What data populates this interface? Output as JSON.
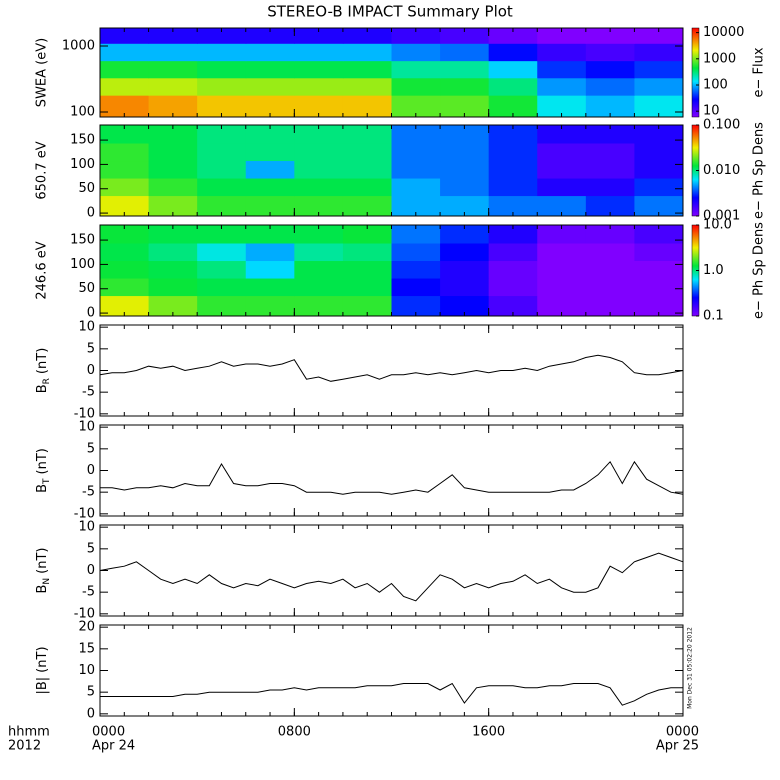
{
  "title": "STEREO-B IMPACT Summary Plot",
  "timestamp": "Mon Dec 31 05:02:20 2012",
  "chart_data": [
    {
      "type": "heatmap",
      "ylabel": "SWEA (eV)",
      "yscale": "log",
      "ylim": [
        84,
        1875
      ],
      "yticks": [
        100,
        1000
      ],
      "xlim": [
        0,
        24
      ],
      "xbins": [
        0,
        2,
        4,
        6,
        8,
        10,
        12,
        14,
        16,
        18,
        20,
        22,
        24
      ],
      "ybins": [
        84,
        180,
        330,
        600,
        1100,
        1875
      ],
      "values": [
        [
          5000,
          4000,
          3000,
          3000,
          3000,
          3000,
          800,
          800,
          500,
          150,
          100,
          150
        ],
        [
          1500,
          1500,
          1200,
          1200,
          1200,
          1200,
          500,
          500,
          300,
          80,
          60,
          80
        ],
        [
          500,
          500,
          400,
          400,
          400,
          400,
          250,
          250,
          120,
          40,
          30,
          40
        ],
        [
          100,
          100,
          100,
          100,
          100,
          100,
          70,
          60,
          30,
          15,
          12,
          15
        ],
        [
          20,
          20,
          20,
          20,
          20,
          20,
          15,
          12,
          8,
          6,
          6,
          6
        ]
      ],
      "zlabel": "e− Flux",
      "zscale": "log",
      "zlim": [
        6,
        15000
      ],
      "zticks": [
        10,
        100,
        1000,
        10000
      ]
    },
    {
      "type": "heatmap",
      "ylabel": "650.7 eV",
      "yscale": "linear",
      "ylim": [
        -6,
        181
      ],
      "yticks": [
        0,
        50,
        100,
        150
      ],
      "xlim": [
        0,
        24
      ],
      "xbins": [
        0,
        2,
        4,
        6,
        8,
        10,
        12,
        14,
        16,
        18,
        20,
        22,
        24
      ],
      "ybins": [
        -6,
        36,
        72,
        108,
        144,
        181
      ],
      "values": [
        [
          0.03,
          0.02,
          0.015,
          0.015,
          0.015,
          0.015,
          0.005,
          0.005,
          0.004,
          0.004,
          0.003,
          0.004
        ],
        [
          0.02,
          0.015,
          0.012,
          0.012,
          0.012,
          0.012,
          0.005,
          0.004,
          0.003,
          0.002,
          0.002,
          0.003
        ],
        [
          0.015,
          0.012,
          0.01,
          0.005,
          0.01,
          0.01,
          0.004,
          0.004,
          0.003,
          0.0015,
          0.0015,
          0.002
        ],
        [
          0.015,
          0.012,
          0.01,
          0.01,
          0.01,
          0.01,
          0.004,
          0.004,
          0.003,
          0.0015,
          0.0015,
          0.002
        ],
        [
          0.012,
          0.012,
          0.01,
          0.01,
          0.01,
          0.01,
          0.004,
          0.004,
          0.003,
          0.002,
          0.002,
          0.002
        ]
      ],
      "zlabel": "e− Ph Sp Dens",
      "zscale": "log",
      "zlim": [
        0.001,
        0.1
      ],
      "zticks": [
        0.001,
        {
          "value": 0.01,
          "label": "0.010"
        },
        {
          "value": 0.1,
          "label": "0.100"
        }
      ]
    },
    {
      "type": "heatmap",
      "ylabel": "246.6 eV",
      "yscale": "linear",
      "ylim": [
        -6,
        181
      ],
      "yticks": [
        0,
        50,
        100,
        150
      ],
      "xlim": [
        0,
        24
      ],
      "xbins": [
        0,
        2,
        4,
        6,
        8,
        10,
        12,
        14,
        16,
        18,
        20,
        22,
        24
      ],
      "ybins": [
        -6,
        36,
        72,
        108,
        144,
        181
      ],
      "values": [
        [
          3,
          2,
          1.5,
          1.5,
          1.5,
          1.5,
          0.3,
          0.25,
          0.15,
          0.1,
          0.1,
          0.1
        ],
        [
          1.5,
          1.3,
          1.2,
          1.2,
          1.2,
          1.2,
          0.25,
          0.2,
          0.12,
          0.1,
          0.1,
          0.1
        ],
        [
          1.3,
          1.2,
          1,
          0.6,
          1.2,
          1.2,
          0.3,
          0.2,
          0.12,
          0.1,
          0.1,
          0.1
        ],
        [
          1.2,
          1,
          0.7,
          0.5,
          0.9,
          1,
          0.35,
          0.25,
          0.15,
          0.1,
          0.1,
          0.12
        ],
        [
          1.3,
          1.2,
          1.2,
          1.2,
          1.2,
          1.3,
          0.4,
          0.3,
          0.2,
          0.12,
          0.12,
          0.15
        ]
      ],
      "zlabel": "e− Ph Sp Dens",
      "zscale": "log",
      "zlim": [
        0.1,
        10
      ],
      "zticks": [
        0.1,
        {
          "value": 1,
          "label": "1.0"
        },
        {
          "value": 10,
          "label": "10.0"
        }
      ]
    },
    {
      "type": "line",
      "ylabel": [
        "B",
        "R",
        "(nT)"
      ],
      "ylim": [
        -10.5,
        10.5
      ],
      "yticks": [
        -10,
        -5,
        0,
        5,
        10
      ],
      "xlim": [
        0,
        24
      ],
      "color": "#000000",
      "x": [
        0,
        0.5,
        1,
        1.5,
        2,
        2.5,
        3,
        3.5,
        4,
        4.5,
        5,
        5.5,
        6,
        6.5,
        7,
        7.5,
        8,
        8.5,
        9,
        9.5,
        10,
        10.5,
        11,
        11.5,
        12,
        12.5,
        13,
        13.5,
        14,
        14.5,
        15,
        15.5,
        16,
        16.5,
        17,
        17.5,
        18,
        18.5,
        19,
        19.5,
        20,
        20.5,
        21,
        21.5,
        22,
        22.5,
        23,
        23.5,
        24
      ],
      "values": [
        -1,
        -0.5,
        -0.5,
        0,
        1,
        0.5,
        1,
        0,
        0.5,
        1,
        2,
        1,
        1.5,
        1.5,
        1,
        1.5,
        2.5,
        -2,
        -1.5,
        -2.5,
        -2,
        -1.5,
        -1,
        -2,
        -1,
        -1,
        -0.5,
        -1,
        -0.5,
        -1,
        -0.5,
        0,
        -0.5,
        0,
        0,
        0.5,
        0,
        1,
        1.5,
        2,
        3,
        3.5,
        3,
        2,
        -0.5,
        -1,
        -1,
        -0.5,
        0
      ]
    },
    {
      "type": "line",
      "ylabel": [
        "B",
        "T",
        "(nT)"
      ],
      "ylim": [
        -10.5,
        10.5
      ],
      "yticks": [
        -10,
        -5,
        0,
        5,
        10
      ],
      "xlim": [
        0,
        24
      ],
      "color": "#000000",
      "x": [
        0,
        0.5,
        1,
        1.5,
        2,
        2.5,
        3,
        3.5,
        4,
        4.5,
        5,
        5.5,
        6,
        6.5,
        7,
        7.5,
        8,
        8.5,
        9,
        9.5,
        10,
        10.5,
        11,
        11.5,
        12,
        12.5,
        13,
        13.5,
        14,
        14.5,
        15,
        15.5,
        16,
        16.5,
        17,
        17.5,
        18,
        18.5,
        19,
        19.5,
        20,
        20.5,
        21,
        21.5,
        22,
        22.5,
        23,
        23.5,
        24
      ],
      "values": [
        -4,
        -4,
        -4.5,
        -4,
        -4,
        -3.5,
        -4,
        -3,
        -3.5,
        -3.5,
        1.5,
        -3,
        -3.5,
        -3.5,
        -3,
        -3,
        -3.5,
        -5,
        -5,
        -5,
        -5.5,
        -5,
        -5,
        -5,
        -5.5,
        -5,
        -4.5,
        -5,
        -3,
        -1,
        -4,
        -4.5,
        -5,
        -5,
        -5,
        -5,
        -5,
        -5,
        -4.5,
        -4.5,
        -3,
        -1,
        2,
        -3,
        2,
        -2,
        -3.5,
        -5,
        -5.5
      ]
    },
    {
      "type": "line",
      "ylabel": [
        "B",
        "N",
        "(nT)"
      ],
      "ylim": [
        -10.5,
        10.5
      ],
      "yticks": [
        -10,
        -5,
        0,
        5,
        10
      ],
      "xlim": [
        0,
        24
      ],
      "color": "#000000",
      "x": [
        0,
        0.5,
        1,
        1.5,
        2,
        2.5,
        3,
        3.5,
        4,
        4.5,
        5,
        5.5,
        6,
        6.5,
        7,
        7.5,
        8,
        8.5,
        9,
        9.5,
        10,
        10.5,
        11,
        11.5,
        12,
        12.5,
        13,
        13.5,
        14,
        14.5,
        15,
        15.5,
        16,
        16.5,
        17,
        17.5,
        18,
        18.5,
        19,
        19.5,
        20,
        20.5,
        21,
        21.5,
        22,
        22.5,
        23,
        23.5,
        24
      ],
      "values": [
        0,
        0.5,
        1,
        2,
        0,
        -2,
        -3,
        -2,
        -3,
        -1,
        -3,
        -4,
        -3,
        -3.5,
        -2,
        -3,
        -4,
        -3,
        -2.5,
        -3,
        -2,
        -4,
        -3,
        -5,
        -3,
        -6,
        -7,
        -4,
        -1,
        -2,
        -4,
        -3,
        -4,
        -3,
        -2.5,
        -1,
        -3,
        -2,
        -4,
        -5,
        -5,
        -4,
        1,
        -0.5,
        2,
        3,
        4,
        3,
        2
      ]
    },
    {
      "type": "line",
      "ylabel": [
        "|B|",
        "",
        "(nT)"
      ],
      "ylim": [
        -0.5,
        20.5
      ],
      "yticks": [
        0,
        5,
        10,
        15,
        20
      ],
      "xlim": [
        0,
        24
      ],
      "color": "#000000",
      "x": [
        0,
        0.5,
        1,
        1.5,
        2,
        2.5,
        3,
        3.5,
        4,
        4.5,
        5,
        5.5,
        6,
        6.5,
        7,
        7.5,
        8,
        8.5,
        9,
        9.5,
        10,
        10.5,
        11,
        11.5,
        12,
        12.5,
        13,
        13.5,
        14,
        14.5,
        15,
        15.5,
        16,
        16.5,
        17,
        17.5,
        18,
        18.5,
        19,
        19.5,
        20,
        20.5,
        21,
        21.5,
        22,
        22.5,
        23,
        23.5,
        24
      ],
      "values": [
        4,
        4,
        4,
        4,
        4,
        4,
        4,
        4.5,
        4.5,
        5,
        5,
        5,
        5,
        5,
        5.5,
        5.5,
        6,
        5.5,
        6,
        6,
        6,
        6,
        6.5,
        6.5,
        6.5,
        7,
        7,
        7,
        5.5,
        7,
        2.5,
        6,
        6.5,
        6.5,
        6.5,
        6,
        6,
        6.5,
        6.5,
        7,
        7,
        7,
        6,
        2,
        3,
        4.5,
        5.5,
        6,
        6
      ],
      "xticks": [
        {
          "value": 0,
          "label": "0000"
        },
        {
          "value": 8,
          "label": "0800"
        },
        {
          "value": 16,
          "label": "1600"
        },
        {
          "value": 24,
          "label": "0000"
        }
      ],
      "xdates": [
        {
          "value": 0,
          "label": "Apr 24"
        },
        {
          "value": 24,
          "label": "Apr 25"
        }
      ],
      "xrow_labels": [
        "hhmm",
        "2012"
      ]
    }
  ]
}
